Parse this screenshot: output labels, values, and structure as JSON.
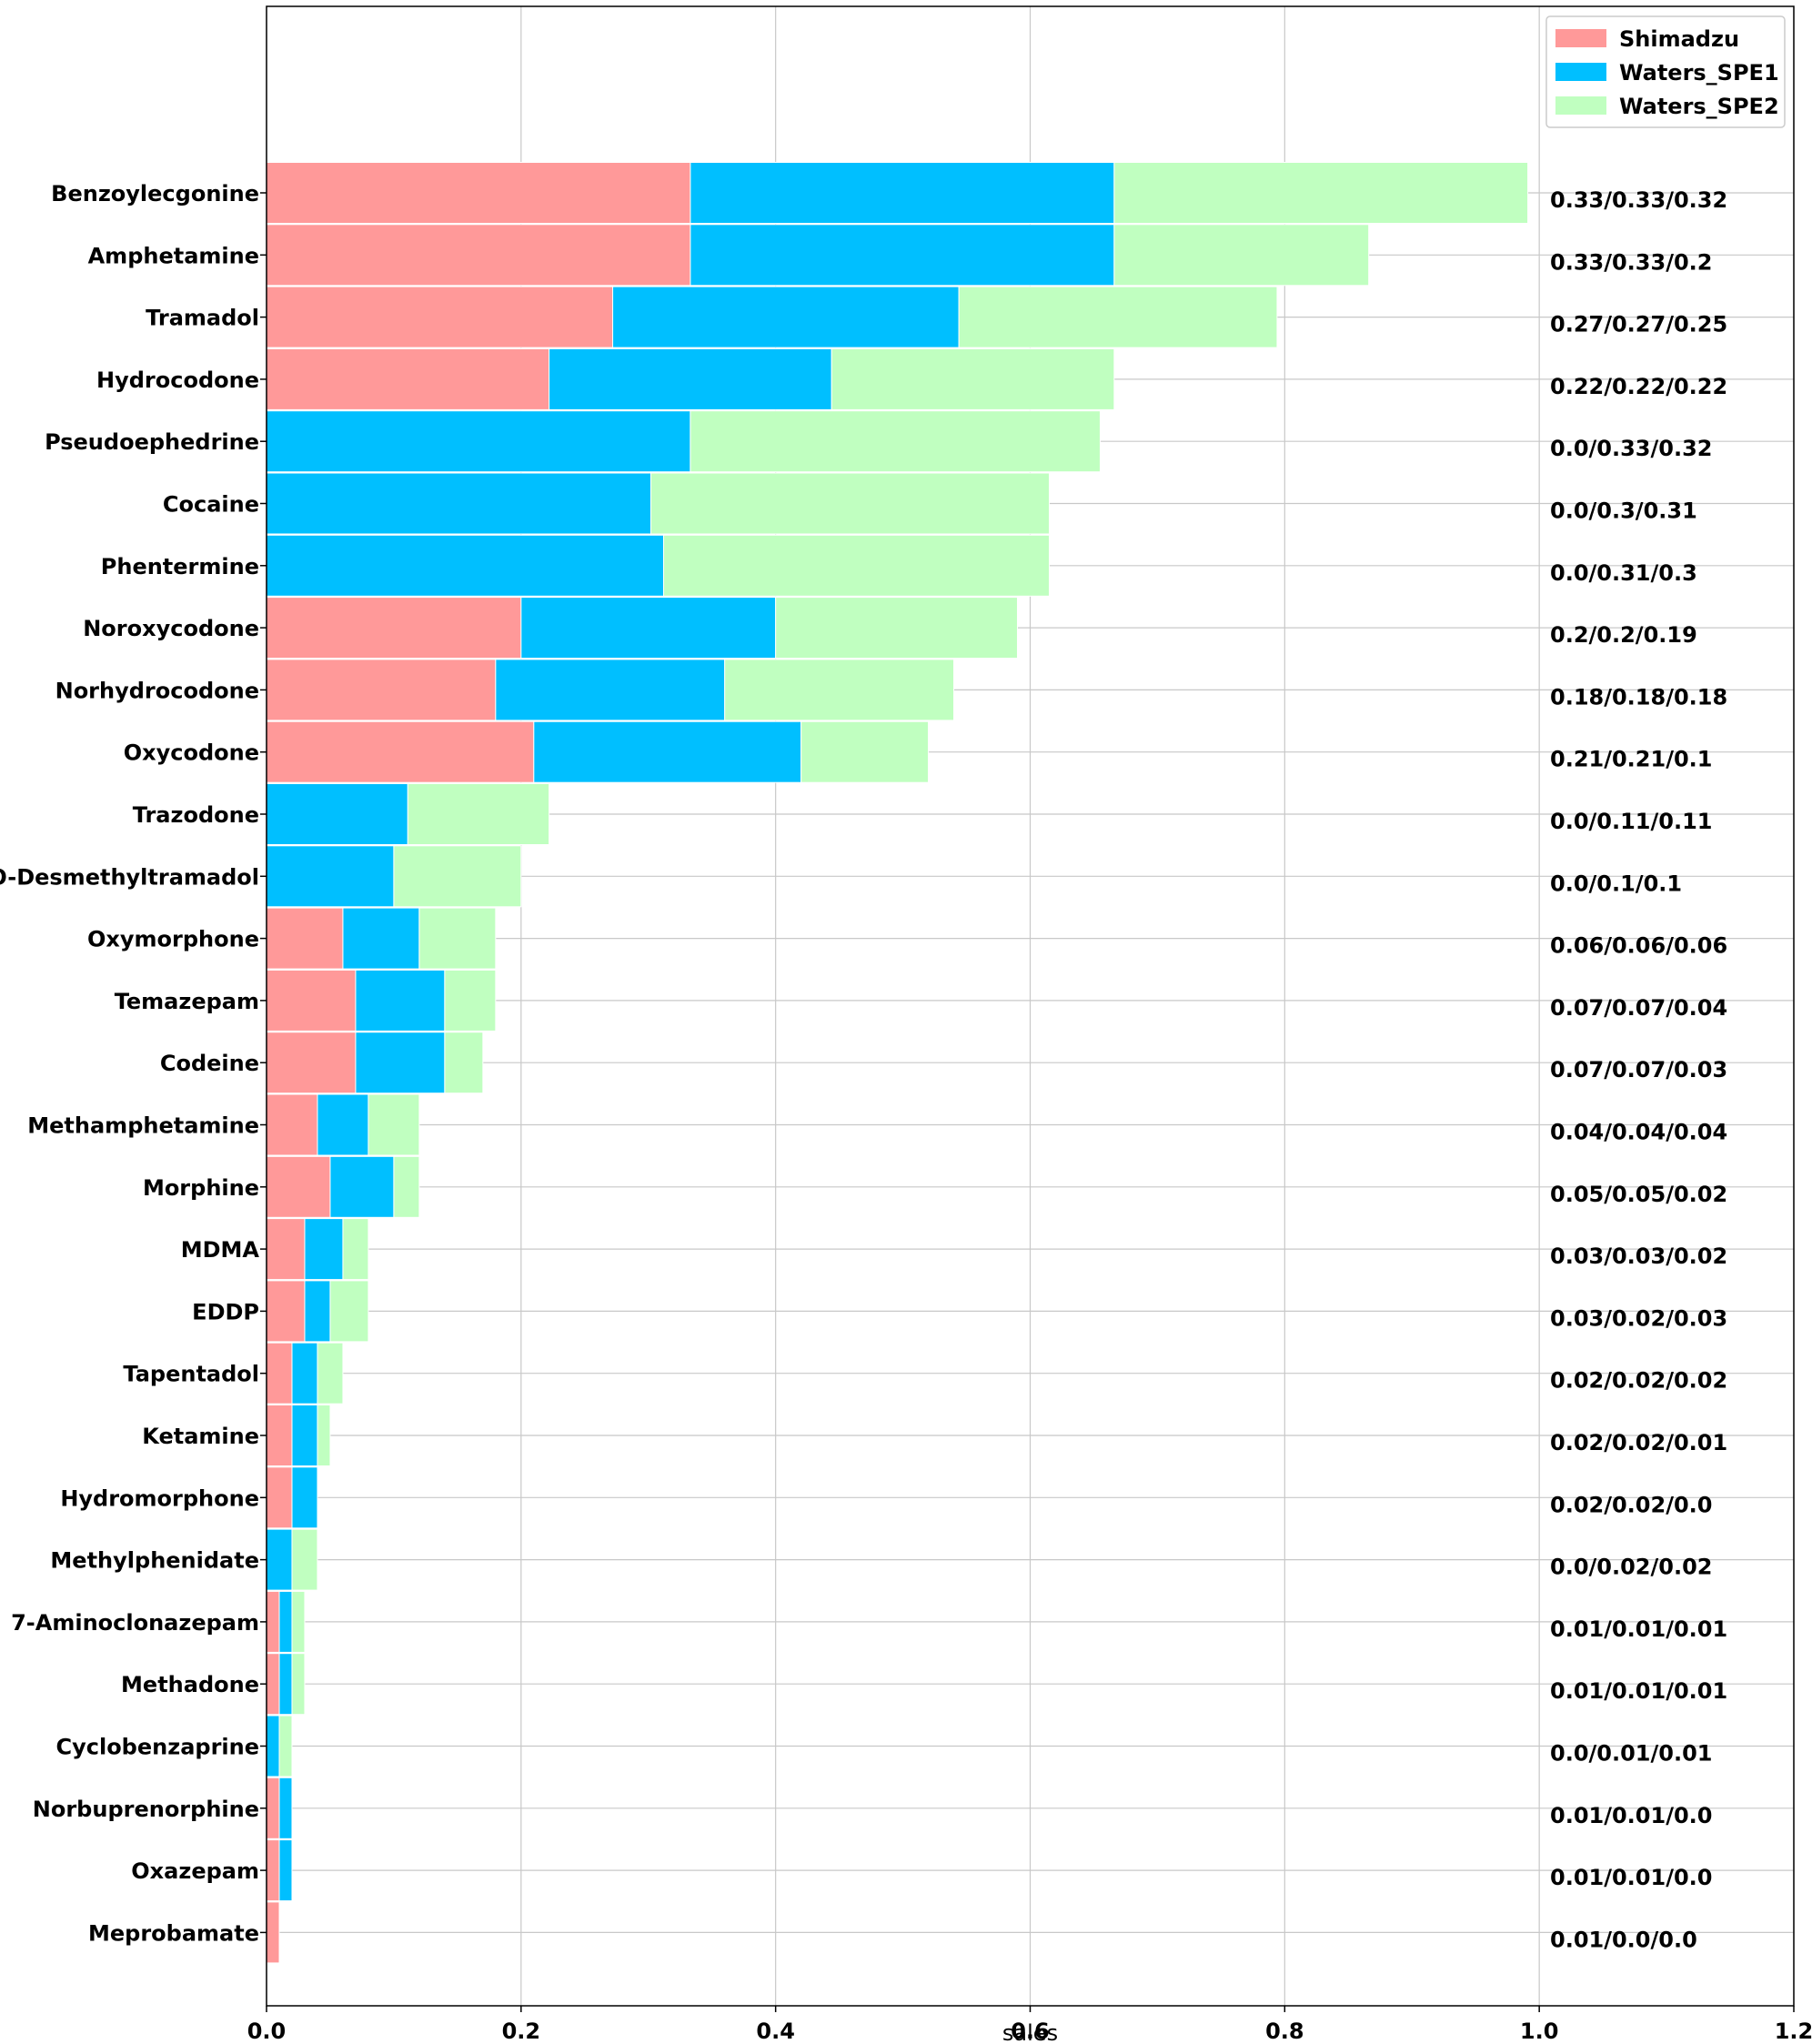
{
  "chart_data": {
    "type": "bar",
    "orientation": "horizontal",
    "stacked": true,
    "xlabel": "sales",
    "xlim": [
      0,
      1.2
    ],
    "xticks": [
      "0.0",
      "0.2",
      "0.4",
      "0.6",
      "0.8",
      "1.0",
      "1.2"
    ],
    "grid": true,
    "legend_position": "top-right",
    "categories": [
      "Benzoylecgonine",
      "Amphetamine",
      "Tramadol",
      "Hydrocodone",
      "Pseudoephedrine",
      "Cocaine",
      "Phentermine",
      "Noroxycodone",
      "Norhydrocodone",
      "Oxycodone",
      "Trazodone",
      "O-Desmethyltramadol",
      "Oxymorphone",
      "Temazepam",
      "Codeine",
      "Methamphetamine",
      "Morphine",
      "MDMA",
      "EDDP",
      "Tapentadol",
      "Ketamine",
      "Hydromorphone",
      "Methylphenidate",
      "7-Aminoclonazepam",
      "Methadone",
      "Cyclobenzaprine",
      "Norbuprenorphine",
      "Oxazepam",
      "Meprobamate"
    ],
    "series": [
      {
        "name": "Shimadzu",
        "color": "#ff9999",
        "values": [
          0.333,
          0.333,
          0.272,
          0.222,
          0.0,
          0.0,
          0.0,
          0.2,
          0.18,
          0.21,
          0.0,
          0.0,
          0.06,
          0.07,
          0.07,
          0.04,
          0.05,
          0.03,
          0.03,
          0.02,
          0.02,
          0.02,
          0.0,
          0.01,
          0.01,
          0.0,
          0.01,
          0.01,
          0.01
        ]
      },
      {
        "name": "Waters_SPE1",
        "color": "#00bfff",
        "values": [
          0.333,
          0.333,
          0.272,
          0.222,
          0.333,
          0.302,
          0.312,
          0.2,
          0.18,
          0.21,
          0.111,
          0.1,
          0.06,
          0.07,
          0.07,
          0.04,
          0.05,
          0.03,
          0.02,
          0.02,
          0.02,
          0.02,
          0.02,
          0.01,
          0.01,
          0.01,
          0.01,
          0.01,
          0.0
        ]
      },
      {
        "name": "Waters_SPE2",
        "color": "#c0ffc0",
        "values": [
          0.325,
          0.2,
          0.25,
          0.222,
          0.322,
          0.313,
          0.303,
          0.19,
          0.18,
          0.1,
          0.111,
          0.1,
          0.06,
          0.04,
          0.03,
          0.04,
          0.02,
          0.02,
          0.03,
          0.02,
          0.01,
          0.0,
          0.02,
          0.01,
          0.01,
          0.01,
          0.0,
          0.0,
          0.0
        ]
      }
    ],
    "value_labels": [
      "0.33/0.33/0.32",
      "0.33/0.33/0.2",
      "0.27/0.27/0.25",
      "0.22/0.22/0.22",
      "0.0/0.33/0.32",
      "0.0/0.3/0.31",
      "0.0/0.31/0.3",
      "0.2/0.2/0.19",
      "0.18/0.18/0.18",
      "0.21/0.21/0.1",
      "0.0/0.11/0.11",
      "0.0/0.1/0.1",
      "0.06/0.06/0.06",
      "0.07/0.07/0.04",
      "0.07/0.07/0.03",
      "0.04/0.04/0.04",
      "0.05/0.05/0.02",
      "0.03/0.03/0.02",
      "0.03/0.02/0.03",
      "0.02/0.02/0.02",
      "0.02/0.02/0.01",
      "0.02/0.02/0.0",
      "0.0/0.02/0.02",
      "0.01/0.01/0.01",
      "0.01/0.01/0.01",
      "0.0/0.01/0.01",
      "0.01/0.01/0.0",
      "0.01/0.01/0.0",
      "0.01/0.0/0.0"
    ]
  }
}
